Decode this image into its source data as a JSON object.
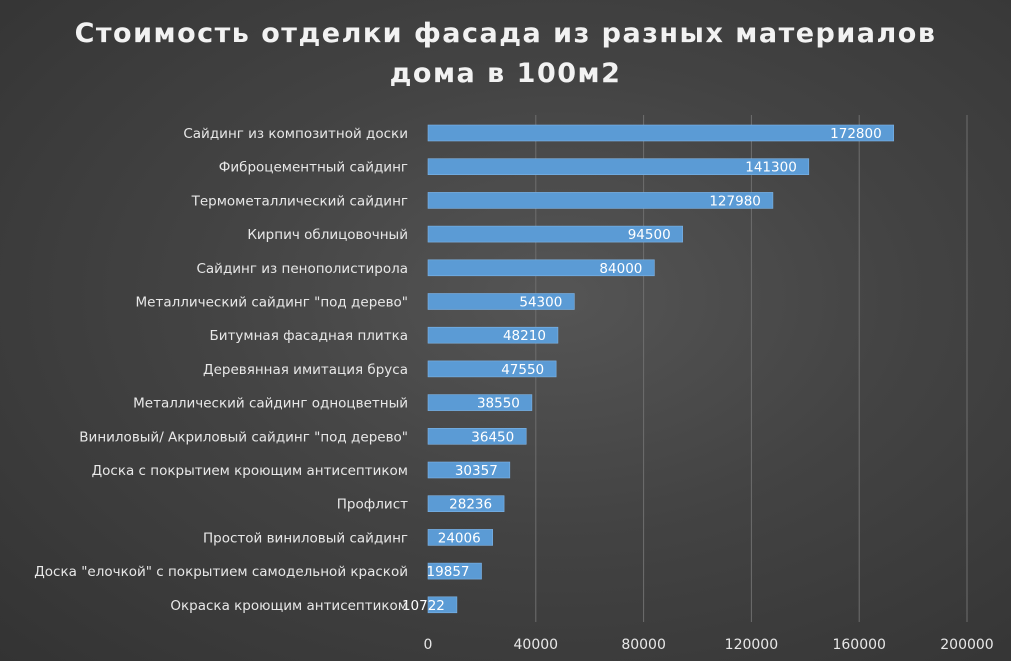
{
  "chart_data": {
    "type": "bar",
    "orientation": "horizontal",
    "title_lines": [
      "Стоимость отделки фасада из разных материалов",
      "дома в 100м2"
    ],
    "categories": [
      "Сайдинг из композитной доски",
      "Фиброцементный сайдинг",
      "Термометаллический сайдинг",
      "Кирпич облицовочный",
      "Сайдинг из пенополистирола",
      "Металлический сайдинг \"под дерево\"",
      "Битумная фасадная плитка",
      "Деревянная имитация бруса",
      "Металлический сайдинг одноцветный",
      "Виниловый/ Акриловый сайдинг \"под дерево\"",
      "Доска с покрытием кроющим антисептиком",
      "Профлист",
      "Простой виниловый сайдинг",
      "Доска \"елочкой\" с покрытием самодельной краской",
      "Окраска кроющим антисептиком"
    ],
    "values": [
      172800,
      141300,
      127980,
      94500,
      84000,
      54300,
      48210,
      47550,
      38550,
      36450,
      30357,
      28236,
      24006,
      19857,
      10722
    ],
    "xlim": [
      0,
      200000
    ],
    "x_ticks": [
      0,
      40000,
      80000,
      120000,
      160000,
      200000
    ],
    "grid": "vertical",
    "legend": "none",
    "colors": {
      "bar": "#5b9bd5",
      "bar_edge": "#7fb4e6",
      "text": "#e8e8e8",
      "grid": "#6e6e6e"
    }
  }
}
